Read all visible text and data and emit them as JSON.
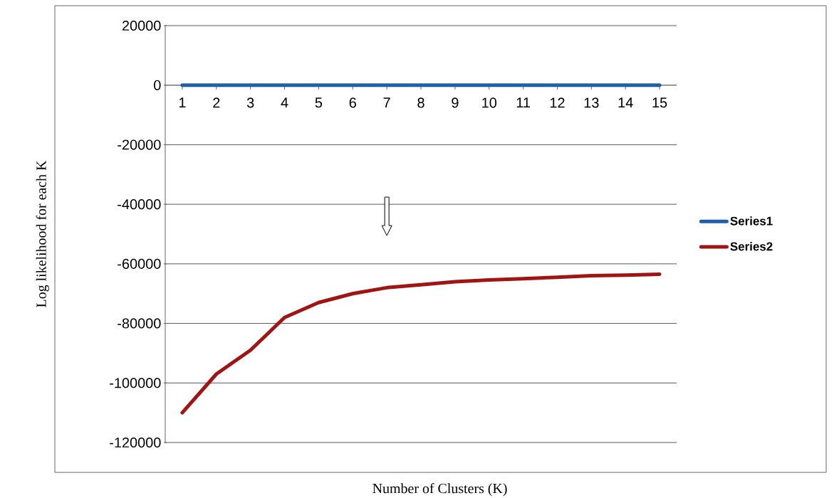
{
  "chart_data": {
    "type": "line",
    "xlabel": "Number of Clusters (K)",
    "ylabel": "Log likelihood for each K",
    "categories": [
      "1",
      "2",
      "3",
      "4",
      "5",
      "6",
      "7",
      "8",
      "9",
      "10",
      "11",
      "12",
      "13",
      "14",
      "15"
    ],
    "series": [
      {
        "name": "Series1",
        "color": "#1f5ea8",
        "values": [
          0,
          0,
          0,
          0,
          0,
          0,
          0,
          0,
          0,
          0,
          0,
          0,
          0,
          0,
          0
        ]
      },
      {
        "name": "Series2",
        "color": "#a01414",
        "values": [
          -110000,
          -97000,
          -89000,
          -78000,
          -73000,
          -70000,
          -68000,
          -67000,
          -66000,
          -65400,
          -65000,
          -64500,
          -64000,
          -63800,
          -63500
        ]
      }
    ],
    "ylim": [
      -120000,
      20000
    ],
    "yticks": [
      -120000,
      -100000,
      -80000,
      -60000,
      -40000,
      -20000,
      0,
      20000
    ],
    "grid": "y",
    "legend": "right",
    "marker": "none",
    "line_style": "solid"
  }
}
